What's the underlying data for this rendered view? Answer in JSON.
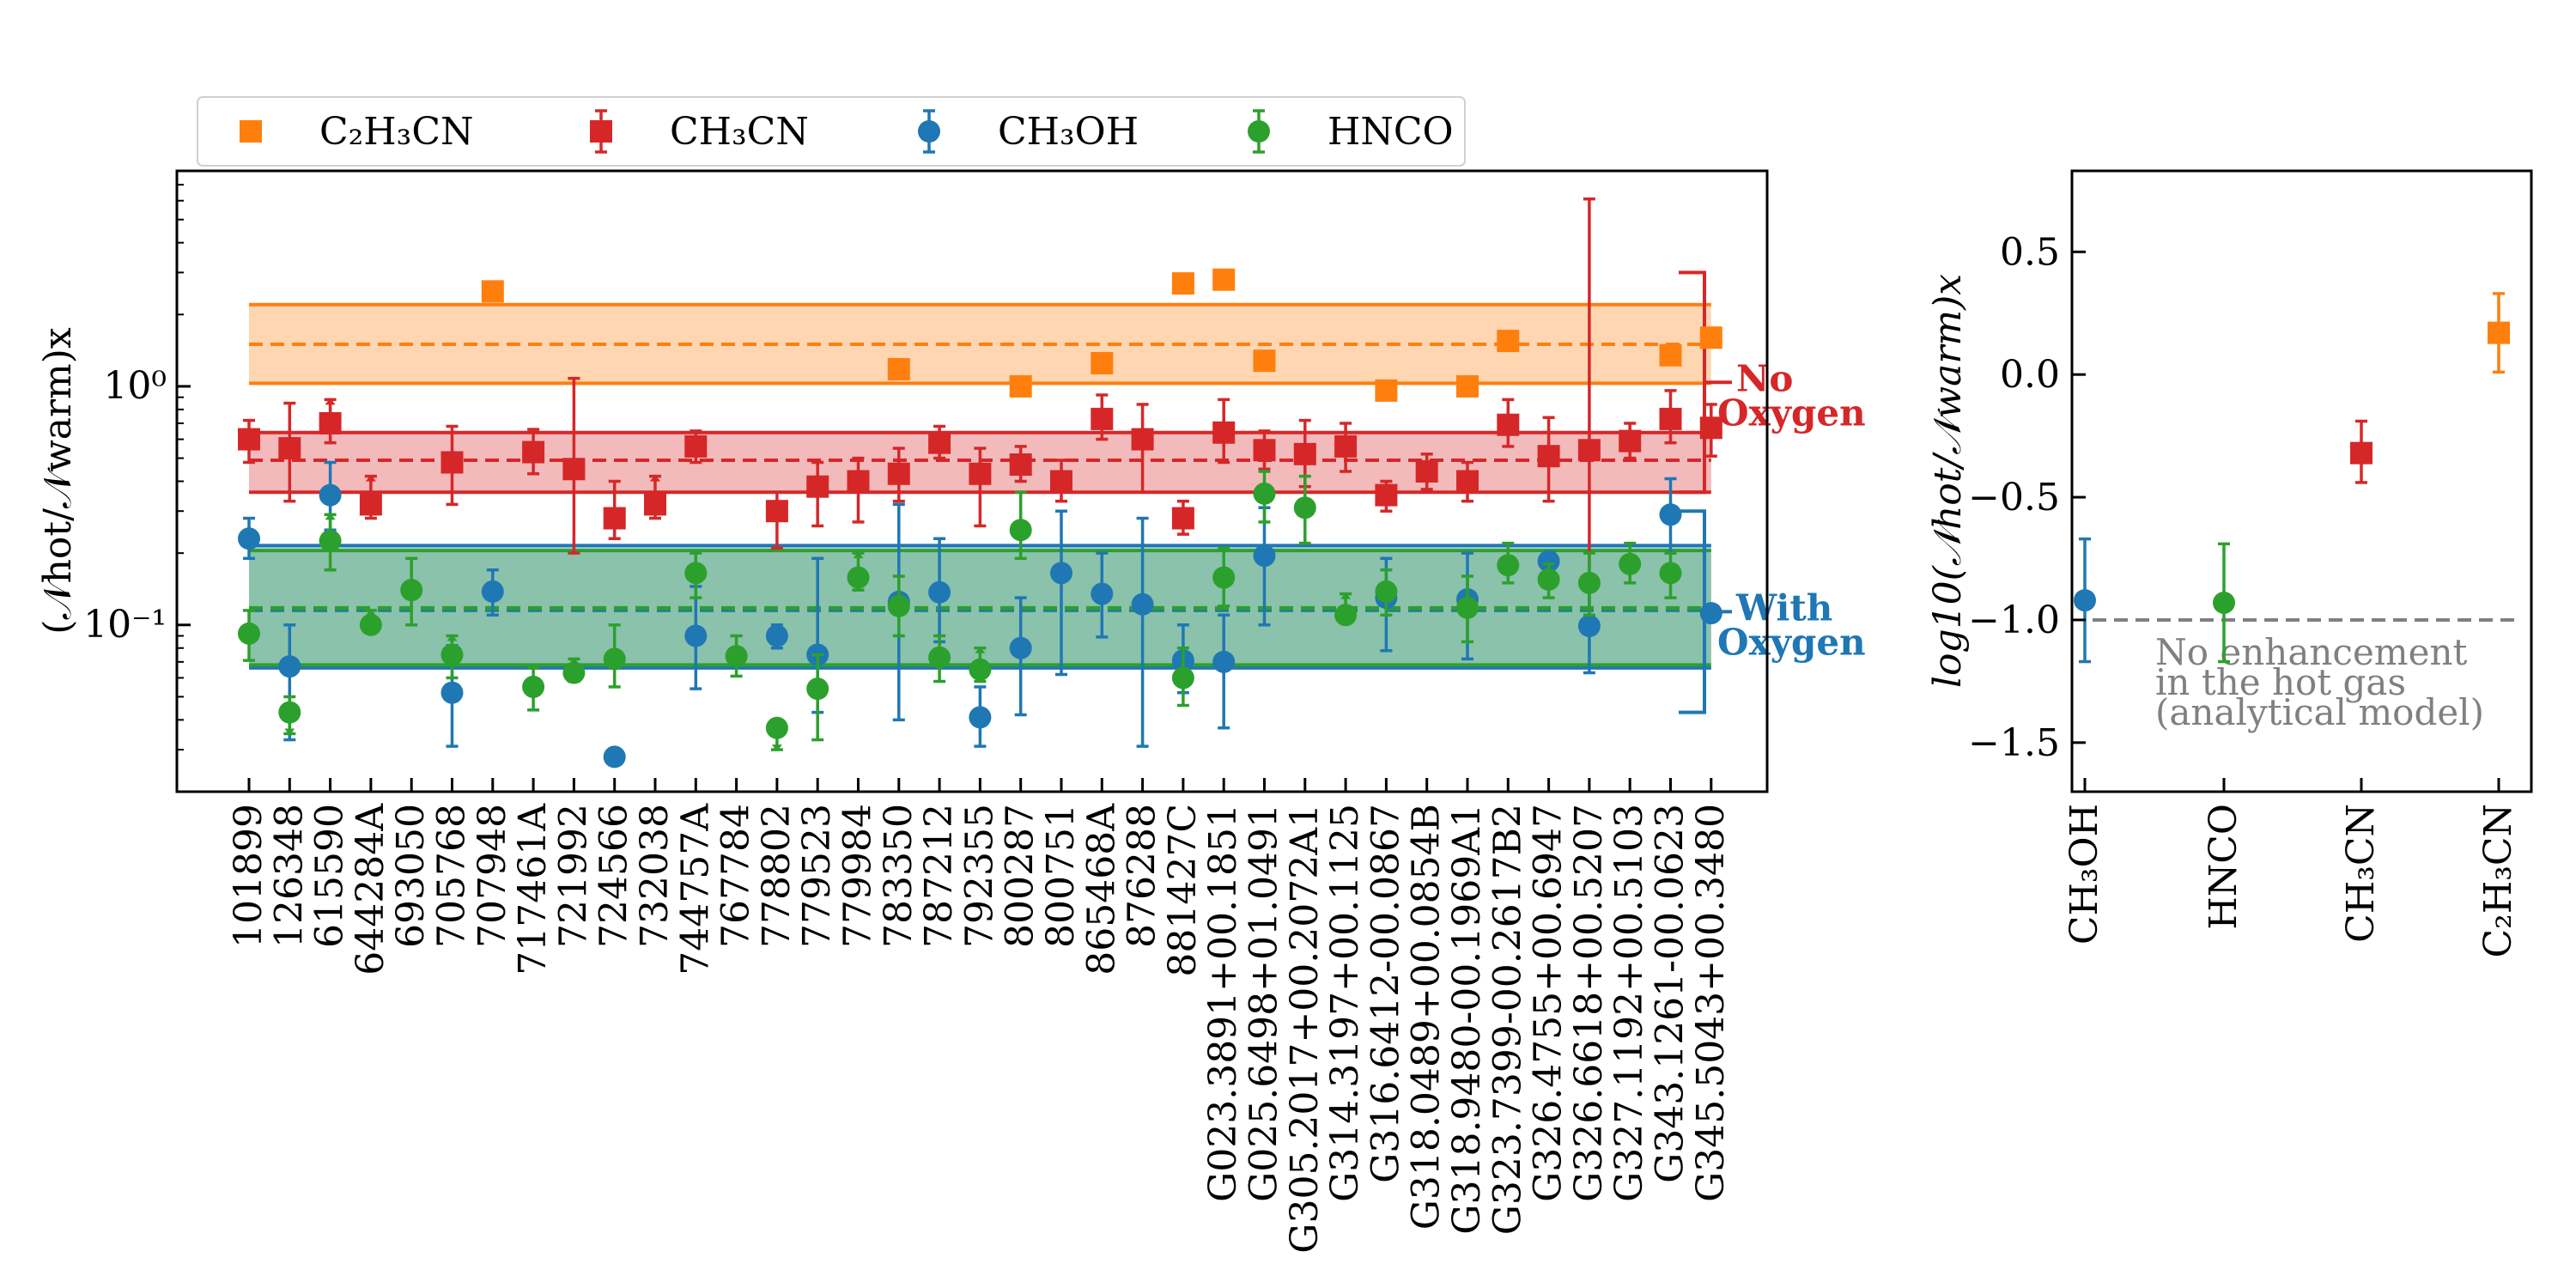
{
  "chart_data": [
    {
      "type": "scatter",
      "yscale": "log",
      "ylim": [
        0.02,
        8.0
      ],
      "ylabel": "(𝒩hot/𝒩warm)x",
      "ytick_labels": [
        "10⁰",
        "10⁻¹"
      ],
      "ytick_values": [
        1.0,
        0.1
      ],
      "grid": false,
      "legend_position": "top-left (outside)",
      "categories": [
        "101899",
        "126348",
        "615590",
        "644284A",
        "693050",
        "705768",
        "707948",
        "717461A",
        "721992",
        "724566",
        "732038",
        "744757A",
        "767784",
        "778802",
        "779523",
        "779984",
        "783350",
        "787212",
        "792355",
        "800287",
        "800751",
        "865468A",
        "876288",
        "881427C",
        "G023.3891+00.1851",
        "G025.6498+01.0491",
        "G305.2017+00.2072A1",
        "G314.3197+00.1125",
        "G316.6412-00.0867",
        "G318.0489+00.0854B",
        "G318.9480-00.1969A1",
        "G323.7399-00.2617B2",
        "G326.4755+00.6947",
        "G326.6618+00.5207",
        "G327.1192+00.5103",
        "G343.1261-00.0623",
        "G345.5043+00.3480"
      ],
      "series": [
        {
          "name": "C2H3CN",
          "color": "#ff7f0e",
          "marker": "square",
          "points": [
            {
              "i": 6,
              "y": 2.5
            },
            {
              "i": 16,
              "y": 1.18
            },
            {
              "i": 19,
              "y": 1.0
            },
            {
              "i": 21,
              "y": 1.25
            },
            {
              "i": 23,
              "y": 2.7
            },
            {
              "i": 24,
              "y": 2.8
            },
            {
              "i": 25,
              "y": 1.28
            },
            {
              "i": 28,
              "y": 0.96
            },
            {
              "i": 30,
              "y": 1.0
            },
            {
              "i": 31,
              "y": 1.55
            },
            {
              "i": 35,
              "y": 1.35
            },
            {
              "i": 36,
              "y": 1.6
            }
          ]
        },
        {
          "name": "CH3CN",
          "color": "#d62728",
          "marker": "square",
          "points": [
            {
              "i": 0,
              "y": 0.6,
              "lo": 0.48,
              "hi": 0.72
            },
            {
              "i": 1,
              "y": 0.55,
              "lo": 0.33,
              "hi": 0.85
            },
            {
              "i": 2,
              "y": 0.7,
              "lo": 0.58,
              "hi": 0.88,
              "limit": "lower"
            },
            {
              "i": 3,
              "y": 0.32,
              "lo": 0.28,
              "hi": 0.42,
              "limit": "lower"
            },
            {
              "i": 5,
              "y": 0.48,
              "lo": 0.32,
              "hi": 0.68
            },
            {
              "i": 7,
              "y": 0.53,
              "lo": 0.43,
              "hi": 0.66
            },
            {
              "i": 8,
              "y": 0.45,
              "lo": 0.2,
              "hi": 1.08
            },
            {
              "i": 9,
              "y": 0.28,
              "lo": 0.23,
              "hi": 0.4
            },
            {
              "i": 10,
              "y": 0.32,
              "lo": 0.28,
              "hi": 0.42,
              "limit": "lower"
            },
            {
              "i": 11,
              "y": 0.56,
              "lo": 0.48,
              "hi": 0.65
            },
            {
              "i": 13,
              "y": 0.3,
              "lo": 0.21,
              "hi": 0.36
            },
            {
              "i": 14,
              "y": 0.38,
              "lo": 0.26,
              "hi": 0.48
            },
            {
              "i": 15,
              "y": 0.4,
              "lo": 0.27,
              "hi": 0.5
            },
            {
              "i": 16,
              "y": 0.43,
              "lo": 0.33,
              "hi": 0.55
            },
            {
              "i": 17,
              "y": 0.58,
              "lo": 0.5,
              "hi": 0.68
            },
            {
              "i": 18,
              "y": 0.43,
              "lo": 0.26,
              "hi": 0.55
            },
            {
              "i": 19,
              "y": 0.47,
              "lo": 0.4,
              "hi": 0.56
            },
            {
              "i": 20,
              "y": 0.4,
              "lo": 0.33,
              "hi": 0.49
            },
            {
              "i": 21,
              "y": 0.73,
              "lo": 0.6,
              "hi": 0.92
            },
            {
              "i": 22,
              "y": 0.6,
              "lo": 0.36,
              "hi": 0.84
            },
            {
              "i": 23,
              "y": 0.28,
              "lo": 0.24,
              "hi": 0.33
            },
            {
              "i": 24,
              "y": 0.64,
              "lo": 0.48,
              "hi": 0.88
            },
            {
              "i": 25,
              "y": 0.54,
              "lo": 0.45,
              "hi": 0.65
            },
            {
              "i": 26,
              "y": 0.52,
              "lo": 0.38,
              "hi": 0.72
            },
            {
              "i": 27,
              "y": 0.56,
              "lo": 0.44,
              "hi": 0.7
            },
            {
              "i": 28,
              "y": 0.35,
              "lo": 0.3,
              "hi": 0.4
            },
            {
              "i": 29,
              "y": 0.44,
              "lo": 0.37,
              "hi": 0.52
            },
            {
              "i": 30,
              "y": 0.4,
              "lo": 0.33,
              "hi": 0.48
            },
            {
              "i": 31,
              "y": 0.69,
              "lo": 0.56,
              "hi": 0.88
            },
            {
              "i": 32,
              "y": 0.51,
              "lo": 0.33,
              "hi": 0.74
            },
            {
              "i": 33,
              "y": 0.54,
              "lo": 0.1,
              "hi": 6.1
            },
            {
              "i": 34,
              "y": 0.59,
              "lo": 0.5,
              "hi": 0.7
            },
            {
              "i": 35,
              "y": 0.73,
              "lo": 0.58,
              "hi": 0.96
            },
            {
              "i": 36,
              "y": 0.67,
              "lo": 0.51,
              "hi": 0.84
            }
          ]
        },
        {
          "name": "CH3OH",
          "color": "#1f77b4",
          "marker": "circle",
          "points": [
            {
              "i": 0,
              "y": 0.23,
              "lo": 0.19,
              "hi": 0.28
            },
            {
              "i": 1,
              "y": 0.067,
              "lo": 0.033,
              "hi": 0.1
            },
            {
              "i": 2,
              "y": 0.35,
              "lo": 0.25,
              "hi": 0.48
            },
            {
              "i": 5,
              "y": 0.052,
              "lo": 0.031,
              "hi": 0.082
            },
            {
              "i": 6,
              "y": 0.138,
              "lo": 0.11,
              "hi": 0.17
            },
            {
              "i": 9,
              "y": 0.028
            },
            {
              "i": 11,
              "y": 0.09,
              "lo": 0.054,
              "hi": 0.145
            },
            {
              "i": 13,
              "y": 0.09,
              "lo": 0.08,
              "hi": 0.1
            },
            {
              "i": 14,
              "y": 0.075,
              "lo": 0.043,
              "hi": 0.19
            },
            {
              "i": 16,
              "y": 0.125,
              "lo": 0.04,
              "hi": 0.32
            },
            {
              "i": 17,
              "y": 0.137,
              "lo": 0.085,
              "hi": 0.23
            },
            {
              "i": 18,
              "y": 0.041,
              "lo": 0.031,
              "hi": 0.055
            },
            {
              "i": 19,
              "y": 0.08,
              "lo": 0.042,
              "hi": 0.13
            },
            {
              "i": 20,
              "y": 0.165,
              "lo": 0.062,
              "hi": 0.3
            },
            {
              "i": 21,
              "y": 0.135,
              "lo": 0.089,
              "hi": 0.2
            },
            {
              "i": 22,
              "y": 0.122,
              "lo": 0.031,
              "hi": 0.28
            },
            {
              "i": 23,
              "y": 0.071,
              "lo": 0.052,
              "hi": 0.1
            },
            {
              "i": 24,
              "y": 0.07,
              "lo": 0.037,
              "hi": 0.11
            },
            {
              "i": 25,
              "y": 0.195,
              "lo": 0.1,
              "hi": 0.31
            },
            {
              "i": 28,
              "y": 0.13,
              "lo": 0.078,
              "hi": 0.19
            },
            {
              "i": 30,
              "y": 0.128,
              "lo": 0.072,
              "hi": 0.2
            },
            {
              "i": 32,
              "y": 0.185,
              "lo": 0.17,
              "hi": 0.2
            },
            {
              "i": 33,
              "y": 0.099,
              "lo": 0.063,
              "hi": 0.15
            },
            {
              "i": 35,
              "y": 0.29,
              "lo": 0.2,
              "hi": 0.41
            },
            {
              "i": 36,
              "y": 0.112
            }
          ]
        },
        {
          "name": "HNCO",
          "color": "#2ca02c",
          "marker": "circle",
          "points": [
            {
              "i": 0,
              "y": 0.092,
              "lo": 0.071,
              "hi": 0.115
            },
            {
              "i": 1,
              "y": 0.043,
              "lo": 0.035,
              "hi": 0.05,
              "limit": "upper"
            },
            {
              "i": 2,
              "y": 0.225,
              "lo": 0.17,
              "hi": 0.29,
              "limit": "lower"
            },
            {
              "i": 3,
              "y": 0.1,
              "lo": 0.095,
              "hi": 0.115,
              "limit": "lower"
            },
            {
              "i": 4,
              "y": 0.14,
              "lo": 0.1,
              "hi": 0.19
            },
            {
              "i": 5,
              "y": 0.075,
              "lo": 0.06,
              "hi": 0.09,
              "limit": "lower"
            },
            {
              "i": 7,
              "y": 0.055,
              "lo": 0.044,
              "hi": 0.066
            },
            {
              "i": 8,
              "y": 0.063,
              "lo": 0.058,
              "hi": 0.072,
              "limit": "lower"
            },
            {
              "i": 9,
              "y": 0.072,
              "lo": 0.055,
              "hi": 0.1
            },
            {
              "i": 11,
              "y": 0.165,
              "lo": 0.13,
              "hi": 0.2
            },
            {
              "i": 12,
              "y": 0.074,
              "lo": 0.061,
              "hi": 0.09
            },
            {
              "i": 13,
              "y": 0.037,
              "lo": 0.03,
              "hi": 0.04,
              "limit": "upper"
            },
            {
              "i": 14,
              "y": 0.054,
              "lo": 0.033,
              "hi": 0.075
            },
            {
              "i": 15,
              "y": 0.158,
              "lo": 0.14,
              "hi": 0.2,
              "limit": "lower"
            },
            {
              "i": 16,
              "y": 0.12,
              "lo": 0.09,
              "hi": 0.16
            },
            {
              "i": 17,
              "y": 0.073,
              "lo": 0.058,
              "hi": 0.09
            },
            {
              "i": 18,
              "y": 0.065,
              "lo": 0.058,
              "hi": 0.08,
              "limit": "lower"
            },
            {
              "i": 19,
              "y": 0.25,
              "lo": 0.19,
              "hi": 0.36
            },
            {
              "i": 23,
              "y": 0.06,
              "lo": 0.046,
              "hi": 0.08
            },
            {
              "i": 24,
              "y": 0.158,
              "lo": 0.12,
              "hi": 0.21
            },
            {
              "i": 25,
              "y": 0.355,
              "lo": 0.27,
              "hi": 0.44
            },
            {
              "i": 26,
              "y": 0.31,
              "lo": 0.22,
              "hi": 0.42
            },
            {
              "i": 27,
              "y": 0.11,
              "lo": 0.105,
              "hi": 0.135,
              "limit": "lower"
            },
            {
              "i": 28,
              "y": 0.138,
              "lo": 0.11,
              "hi": 0.17
            },
            {
              "i": 30,
              "y": 0.118,
              "lo": 0.085,
              "hi": 0.16
            },
            {
              "i": 31,
              "y": 0.178,
              "lo": 0.15,
              "hi": 0.22
            },
            {
              "i": 32,
              "y": 0.155,
              "lo": 0.13,
              "hi": 0.18
            },
            {
              "i": 33,
              "y": 0.15,
              "lo": 0.11,
              "hi": 0.2
            },
            {
              "i": 34,
              "y": 0.18,
              "lo": 0.15,
              "hi": 0.22
            },
            {
              "i": 35,
              "y": 0.165,
              "lo": 0.13,
              "hi": 0.2
            }
          ]
        }
      ],
      "bands": [
        {
          "name": "C2H3CN",
          "color": "#ff7f0e",
          "center": 1.5,
          "low": 1.03,
          "high": 2.2
        },
        {
          "name": "CH3CN",
          "color": "#d62728",
          "center": 0.49,
          "low": 0.36,
          "high": 0.64
        },
        {
          "name": "CH3OH",
          "color": "#1f77b4",
          "center": 0.115,
          "low": 0.066,
          "high": 0.215
        },
        {
          "name": "HNCO",
          "color": "#2ca02c",
          "center": 0.118,
          "low": 0.068,
          "high": 0.205
        }
      ],
      "brackets": [
        {
          "line1": "No",
          "line2": "Oxygen",
          "color": "#d62728",
          "low": 0.36,
          "high": 3.0
        },
        {
          "line1": "With",
          "line2": "Oxygen",
          "color": "#1f77b4",
          "low": 0.043,
          "high": 0.3
        }
      ]
    },
    {
      "type": "scatter",
      "ylim": [
        -1.7,
        0.83
      ],
      "ylabel": "log10(𝒩hot/𝒩warm)x",
      "yticks": [
        0.5,
        0.0,
        -0.5,
        -1.0,
        -1.5
      ],
      "ytick_labels": [
        "0.5",
        "0.0",
        "−0.5",
        "−1.0",
        "−1.5"
      ],
      "categories": [
        "CH₃OH",
        "HNCO",
        "CH₃CN",
        "C₂H₃CN"
      ],
      "points": [
        {
          "label": "CH3OH",
          "y": -0.92,
          "lo": -1.17,
          "hi": -0.67,
          "color": "#1f77b4",
          "marker": "circle"
        },
        {
          "label": "HNCO",
          "y": -0.93,
          "lo": -1.17,
          "hi": -0.69,
          "color": "#2ca02c",
          "marker": "circle"
        },
        {
          "label": "CH3CN",
          "y": -0.32,
          "lo": -0.44,
          "hi": -0.19,
          "color": "#d62728",
          "marker": "square"
        },
        {
          "label": "C2H3CN",
          "y": 0.17,
          "lo": 0.01,
          "hi": 0.33,
          "color": "#ff7f0e",
          "marker": "square"
        }
      ],
      "reference_line": {
        "y": -1.0,
        "color": "#808080"
      },
      "annotation": [
        "No enhancement",
        "in the hot gas",
        "(analytical model)"
      ]
    }
  ],
  "legend": [
    {
      "label": "C₂H₃CN",
      "color": "#ff7f0e",
      "marker": "square"
    },
    {
      "label": "CH₃CN",
      "color": "#d62728",
      "marker": "square-err"
    },
    {
      "label": "CH₃OH",
      "color": "#1f77b4",
      "marker": "circle-err"
    },
    {
      "label": "HNCO",
      "color": "#2ca02c",
      "marker": "circle-err"
    }
  ]
}
